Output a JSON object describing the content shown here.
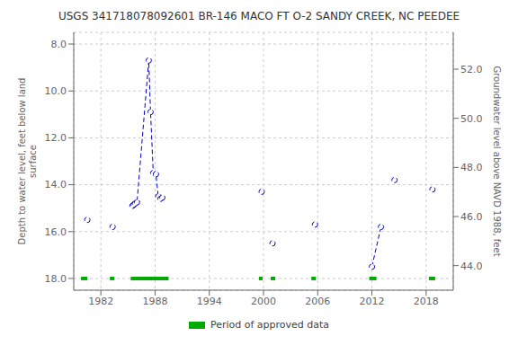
{
  "chart_data": {
    "type": "line",
    "title": "USGS 341718078092601 BR-146 MACO FT O-2 SANDY CREEK, NC PEEDEE",
    "y_label": "Depth to water level, feet below land\nsurface",
    "y2_label": "Groundwater level above NAVD 1988, feet",
    "xlim": [
      1979,
      2021
    ],
    "xticks": [
      1982,
      1988,
      1994,
      2000,
      2006,
      2012,
      2018
    ],
    "ylim": [
      18.5,
      7.5
    ],
    "yticks": [
      {
        "value": 8.0,
        "label": "8.0"
      },
      {
        "value": 10.0,
        "label": "10.0"
      },
      {
        "value": 12.0,
        "label": "12.0"
      },
      {
        "value": 14.0,
        "label": "14.0"
      },
      {
        "value": 16.0,
        "label": "16.0"
      },
      {
        "value": 18.0,
        "label": "18.0"
      }
    ],
    "y2lim": [
      43.0,
      53.5
    ],
    "y2ticks": [
      {
        "value": 44.0,
        "label": "44.0"
      },
      {
        "value": 46.0,
        "label": "46.0"
      },
      {
        "value": 48.0,
        "label": "48.0"
      },
      {
        "value": 50.0,
        "label": "50.0"
      },
      {
        "value": 52.0,
        "label": "52.0"
      }
    ],
    "grid": true,
    "legend": "bottom",
    "series": [
      {
        "x": [
          1980.5
        ],
        "values": [
          15.5
        ],
        "color": "#0000CC",
        "marker": "o",
        "line_style": "dashed"
      },
      {
        "x": [
          1983.3
        ],
        "values": [
          15.8
        ],
        "color": "#0000CC",
        "marker": "o",
        "line_style": "dashed"
      },
      {
        "x": [
          1985.5,
          1985.65,
          1985.8,
          1986.0,
          1987.3,
          1987.5,
          1987.8,
          1988.1,
          1988.35,
          1988.6,
          1988.8
        ],
        "values": [
          14.9,
          14.85,
          14.8,
          14.75,
          8.7,
          10.9,
          13.5,
          13.55,
          14.5,
          14.6,
          14.55
        ],
        "color": "#0000CC",
        "marker": "o",
        "line_style": "dashed"
      },
      {
        "x": [
          1999.8
        ],
        "values": [
          14.3
        ],
        "color": "#0000CC",
        "marker": "o",
        "line_style": "dashed"
      },
      {
        "x": [
          2001.0
        ],
        "values": [
          16.5
        ],
        "color": "#0000CC",
        "marker": "o",
        "line_style": "dashed"
      },
      {
        "x": [
          2005.7
        ],
        "values": [
          15.7
        ],
        "color": "#0000CC",
        "marker": "o",
        "line_style": "dashed"
      },
      {
        "x": [
          2012.0,
          2013.0
        ],
        "values": [
          17.5,
          15.8
        ],
        "color": "#0000CC",
        "marker": "o",
        "line_style": "dashed"
      },
      {
        "x": [
          2014.5
        ],
        "values": [
          13.8
        ],
        "color": "#0000CC",
        "marker": "o",
        "line_style": "dashed"
      },
      {
        "x": [
          2018.7
        ],
        "values": [
          14.2
        ],
        "color": "#0000CC",
        "marker": "o",
        "line_style": "dashed"
      }
    ],
    "approved_periods": {
      "name": "Period of approved data",
      "color": "#00AA00",
      "y": 18.0,
      "ranges": [
        [
          1979.8,
          1980.5
        ],
        [
          1983.0,
          1983.5
        ],
        [
          1985.3,
          1989.5
        ],
        [
          1999.5,
          1999.9
        ],
        [
          2000.8,
          2001.3
        ],
        [
          2005.3,
          2005.8
        ],
        [
          2011.7,
          2012.5
        ],
        [
          2018.3,
          2019.0
        ]
      ]
    }
  }
}
